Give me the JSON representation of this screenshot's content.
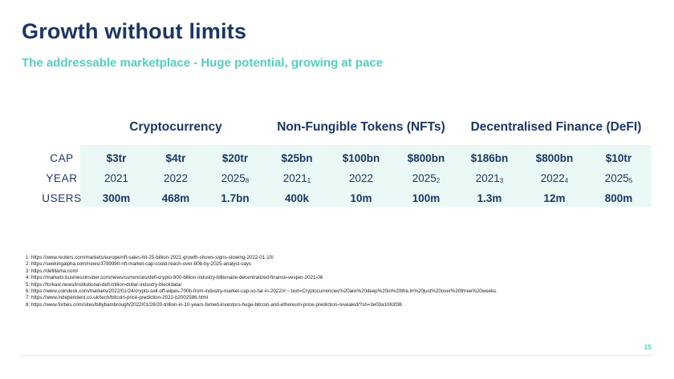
{
  "slide": {
    "title": "Growth without limits",
    "subtitle": "The addressable marketplace - Huge potential, growing at pace",
    "page_number": "15"
  },
  "table": {
    "groups": [
      "Cryptocurrency",
      "Non-Fungible Tokens (NFTs)",
      "Decentralised Finance (DeFI)"
    ],
    "row_labels": [
      "CAP",
      "YEAR",
      "USERS"
    ],
    "cap": [
      "$3tr",
      "$4tr",
      "$20tr",
      "$25bn",
      "$100bn",
      "$800bn",
      "$186bn",
      "$800bn",
      "$10tr"
    ],
    "year": [
      {
        "value": "2021",
        "note": ""
      },
      {
        "value": "2022",
        "note": ""
      },
      {
        "value": "2025",
        "note": "8"
      },
      {
        "value": "2021",
        "note": "1"
      },
      {
        "value": "2022",
        "note": ""
      },
      {
        "value": "2025",
        "note": "2"
      },
      {
        "value": "2021",
        "note": "3"
      },
      {
        "value": "2022",
        "note": "4"
      },
      {
        "value": "2025",
        "note": "5"
      }
    ],
    "users": [
      "300m",
      "468m",
      "1.7bn",
      "400k",
      "10m",
      "100m",
      "1.3m",
      "12m",
      "800m"
    ]
  },
  "footnotes": [
    "1: https://www.reuters.com/markets/europe/nft-sales-hit-25-billion-2021-growth-shows-signs-slowing-2022-01-10/",
    "2: https://seekingalpha.com/news/3789990-nft-market-cap-could-reach-over-80b-by-2025-analyst-says",
    "3: https://defillama.com/",
    "4: https://markets.businessinsider.com/news/currencies/defi-crypto-800-billion-industry-billionaire-decentralized-finance-vesper-2021-08",
    "5: https://forkast.news/institutional-defi-trillion-dollar-industry-blockdata/",
    "6: https://www.coindesk.com/markets/2022/01/24/crypto-sell-off-wipes-700b-from-industry-market-cap-so-far-in-2022/#:~:text=Cryptocurrencies%20are%20deep%20in%20the,in%20just%20over%20three%20weeks.",
    "7: https://www.independent.co.uk/tech/bitcoin-price-prediction-2022-b2002586.html",
    "8: https://www.forbes.com/sites/billybambrough/2022/01/26/20-trillion-in-10-years-famed-investors-huge-bitcoin-and-ethereum-price-prediction-revealed/?sh=3e00a1063f36"
  ],
  "colors": {
    "navy": "#1c3664",
    "teal": "#56cdbf",
    "table_bg": "#eaf9f6"
  }
}
